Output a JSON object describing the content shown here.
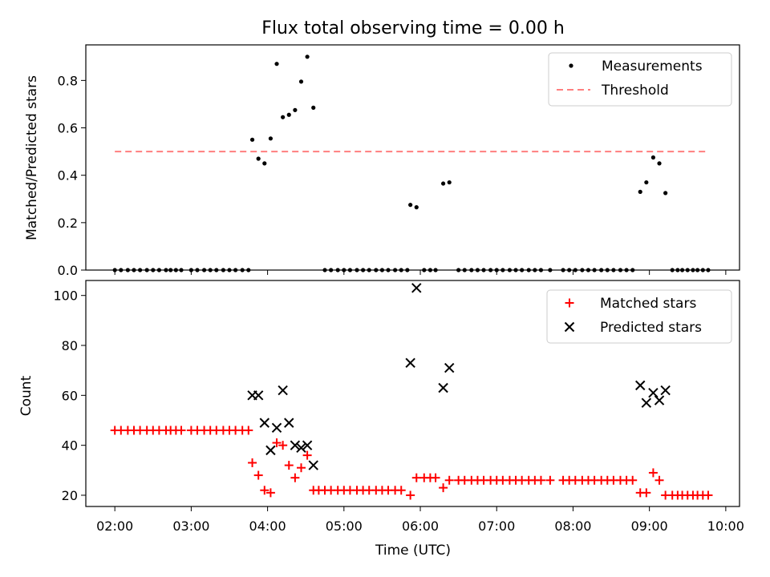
{
  "title": "Flux total observing time = 0.00 h",
  "chart_data": [
    {
      "type": "scatter",
      "panel": "top",
      "ylabel": "Matched/Predicted stars",
      "ylim": [
        0,
        0.95
      ],
      "yticks": [
        0.0,
        0.2,
        0.4,
        0.6,
        0.8
      ],
      "ytick_labels": [
        "0.0",
        "0.2",
        "0.4",
        "0.6",
        "0.8"
      ],
      "xlim_hours": [
        1.62,
        10.18
      ],
      "legend_placement": "top-right",
      "threshold": {
        "name": "Threshold",
        "y": 0.5,
        "x_from": 2.0,
        "x_to": 9.77,
        "style": "dashed",
        "color": "#ff7f7f"
      },
      "series": [
        {
          "name": "Measurements",
          "marker": "dot",
          "color": "#000000",
          "points": [
            [
              2.0,
              0
            ],
            [
              2.08,
              0
            ],
            [
              2.17,
              0
            ],
            [
              2.25,
              0
            ],
            [
              2.33,
              0
            ],
            [
              2.42,
              0
            ],
            [
              2.5,
              0
            ],
            [
              2.58,
              0
            ],
            [
              2.67,
              0
            ],
            [
              2.73,
              0
            ],
            [
              2.8,
              0
            ],
            [
              2.87,
              0
            ],
            [
              3.0,
              0
            ],
            [
              3.08,
              0
            ],
            [
              3.17,
              0
            ],
            [
              3.25,
              0
            ],
            [
              3.33,
              0
            ],
            [
              3.42,
              0
            ],
            [
              3.5,
              0
            ],
            [
              3.58,
              0
            ],
            [
              3.67,
              0
            ],
            [
              3.75,
              0
            ],
            [
              3.8,
              0.55
            ],
            [
              3.88,
              0.47
            ],
            [
              3.96,
              0.45
            ],
            [
              4.04,
              0.555
            ],
            [
              4.12,
              0.87
            ],
            [
              4.2,
              0.645
            ],
            [
              4.28,
              0.655
            ],
            [
              4.36,
              0.675
            ],
            [
              4.44,
              0.795
            ],
            [
              4.52,
              0.9
            ],
            [
              4.6,
              0.685
            ],
            [
              4.75,
              0
            ],
            [
              4.83,
              0
            ],
            [
              4.92,
              0
            ],
            [
              5.0,
              0
            ],
            [
              5.08,
              0
            ],
            [
              5.17,
              0
            ],
            [
              5.25,
              0
            ],
            [
              5.33,
              0
            ],
            [
              5.42,
              0
            ],
            [
              5.5,
              0
            ],
            [
              5.58,
              0
            ],
            [
              5.67,
              0
            ],
            [
              5.75,
              0
            ],
            [
              5.83,
              0
            ],
            [
              5.87,
              0.275
            ],
            [
              5.95,
              0.265
            ],
            [
              6.05,
              0
            ],
            [
              6.13,
              0
            ],
            [
              6.2,
              0
            ],
            [
              6.3,
              0.365
            ],
            [
              6.38,
              0.37
            ],
            [
              6.5,
              0
            ],
            [
              6.58,
              0
            ],
            [
              6.67,
              0
            ],
            [
              6.75,
              0
            ],
            [
              6.83,
              0
            ],
            [
              6.92,
              0
            ],
            [
              7.0,
              0
            ],
            [
              7.08,
              0
            ],
            [
              7.17,
              0
            ],
            [
              7.25,
              0
            ],
            [
              7.33,
              0
            ],
            [
              7.42,
              0
            ],
            [
              7.5,
              0
            ],
            [
              7.58,
              0
            ],
            [
              7.7,
              0
            ],
            [
              7.87,
              0
            ],
            [
              7.95,
              0
            ],
            [
              8.03,
              0
            ],
            [
              8.12,
              0
            ],
            [
              8.2,
              0
            ],
            [
              8.28,
              0
            ],
            [
              8.37,
              0
            ],
            [
              8.45,
              0
            ],
            [
              8.53,
              0
            ],
            [
              8.62,
              0
            ],
            [
              8.7,
              0
            ],
            [
              8.78,
              0
            ],
            [
              8.88,
              0.33
            ],
            [
              8.96,
              0.37
            ],
            [
              9.05,
              0.475
            ],
            [
              9.13,
              0.45
            ],
            [
              9.21,
              0.325
            ],
            [
              9.3,
              0
            ],
            [
              9.37,
              0
            ],
            [
              9.43,
              0
            ],
            [
              9.5,
              0
            ],
            [
              9.57,
              0
            ],
            [
              9.63,
              0
            ],
            [
              9.7,
              0
            ],
            [
              9.77,
              0
            ]
          ]
        }
      ]
    },
    {
      "type": "scatter",
      "panel": "bottom",
      "xlabel": "Time (UTC)",
      "ylabel": "Count",
      "ylim": [
        15.5,
        106
      ],
      "yticks": [
        20,
        40,
        60,
        80,
        100
      ],
      "ytick_labels": [
        "20",
        "40",
        "60",
        "80",
        "100"
      ],
      "xlim_hours": [
        1.62,
        10.18
      ],
      "xticks_hours": [
        2,
        3,
        4,
        5,
        6,
        7,
        8,
        9,
        10
      ],
      "xtick_labels": [
        "02:00",
        "03:00",
        "04:00",
        "05:00",
        "06:00",
        "07:00",
        "08:00",
        "09:00",
        "10:00"
      ],
      "legend_placement": "top-right",
      "series": [
        {
          "name": "Matched stars",
          "marker": "plus",
          "color": "#ff0000",
          "points": [
            [
              2.0,
              46
            ],
            [
              2.08,
              46
            ],
            [
              2.17,
              46
            ],
            [
              2.25,
              46
            ],
            [
              2.33,
              46
            ],
            [
              2.42,
              46
            ],
            [
              2.5,
              46
            ],
            [
              2.58,
              46
            ],
            [
              2.67,
              46
            ],
            [
              2.73,
              46
            ],
            [
              2.8,
              46
            ],
            [
              2.87,
              46
            ],
            [
              3.0,
              46
            ],
            [
              3.08,
              46
            ],
            [
              3.17,
              46
            ],
            [
              3.25,
              46
            ],
            [
              3.33,
              46
            ],
            [
              3.42,
              46
            ],
            [
              3.5,
              46
            ],
            [
              3.58,
              46
            ],
            [
              3.67,
              46
            ],
            [
              3.75,
              46
            ],
            [
              3.8,
              33
            ],
            [
              3.88,
              28
            ],
            [
              3.96,
              22
            ],
            [
              4.04,
              21
            ],
            [
              4.12,
              41
            ],
            [
              4.2,
              40
            ],
            [
              4.28,
              32
            ],
            [
              4.36,
              27
            ],
            [
              4.44,
              31
            ],
            [
              4.52,
              36
            ],
            [
              4.6,
              22
            ],
            [
              4.67,
              22
            ],
            [
              4.75,
              22
            ],
            [
              4.83,
              22
            ],
            [
              4.92,
              22
            ],
            [
              5.0,
              22
            ],
            [
              5.08,
              22
            ],
            [
              5.17,
              22
            ],
            [
              5.25,
              22
            ],
            [
              5.33,
              22
            ],
            [
              5.42,
              22
            ],
            [
              5.5,
              22
            ],
            [
              5.58,
              22
            ],
            [
              5.67,
              22
            ],
            [
              5.75,
              22
            ],
            [
              5.87,
              20
            ],
            [
              5.95,
              27
            ],
            [
              6.05,
              27
            ],
            [
              6.13,
              27
            ],
            [
              6.2,
              27
            ],
            [
              6.3,
              23
            ],
            [
              6.38,
              26
            ],
            [
              6.5,
              26
            ],
            [
              6.58,
              26
            ],
            [
              6.67,
              26
            ],
            [
              6.75,
              26
            ],
            [
              6.83,
              26
            ],
            [
              6.92,
              26
            ],
            [
              7.0,
              26
            ],
            [
              7.08,
              26
            ],
            [
              7.17,
              26
            ],
            [
              7.25,
              26
            ],
            [
              7.33,
              26
            ],
            [
              7.42,
              26
            ],
            [
              7.5,
              26
            ],
            [
              7.58,
              26
            ],
            [
              7.7,
              26
            ],
            [
              7.87,
              26
            ],
            [
              7.95,
              26
            ],
            [
              8.03,
              26
            ],
            [
              8.12,
              26
            ],
            [
              8.2,
              26
            ],
            [
              8.28,
              26
            ],
            [
              8.37,
              26
            ],
            [
              8.45,
              26
            ],
            [
              8.53,
              26
            ],
            [
              8.62,
              26
            ],
            [
              8.7,
              26
            ],
            [
              8.78,
              26
            ],
            [
              8.88,
              21
            ],
            [
              8.96,
              21
            ],
            [
              9.05,
              29
            ],
            [
              9.13,
              26
            ],
            [
              9.21,
              20
            ],
            [
              9.3,
              20
            ],
            [
              9.37,
              20
            ],
            [
              9.43,
              20
            ],
            [
              9.5,
              20
            ],
            [
              9.57,
              20
            ],
            [
              9.63,
              20
            ],
            [
              9.7,
              20
            ],
            [
              9.77,
              20
            ]
          ]
        },
        {
          "name": "Predicted stars",
          "marker": "x",
          "color": "#000000",
          "points": [
            [
              3.8,
              60
            ],
            [
              3.88,
              60
            ],
            [
              3.96,
              49
            ],
            [
              4.04,
              38
            ],
            [
              4.12,
              47
            ],
            [
              4.2,
              62
            ],
            [
              4.28,
              49
            ],
            [
              4.36,
              40
            ],
            [
              4.44,
              39
            ],
            [
              4.52,
              40
            ],
            [
              4.6,
              32
            ],
            [
              5.87,
              73
            ],
            [
              5.95,
              103
            ],
            [
              6.3,
              63
            ],
            [
              6.38,
              71
            ],
            [
              8.88,
              64
            ],
            [
              8.96,
              57
            ],
            [
              9.05,
              61
            ],
            [
              9.13,
              58
            ],
            [
              9.21,
              62
            ]
          ]
        }
      ]
    }
  ]
}
